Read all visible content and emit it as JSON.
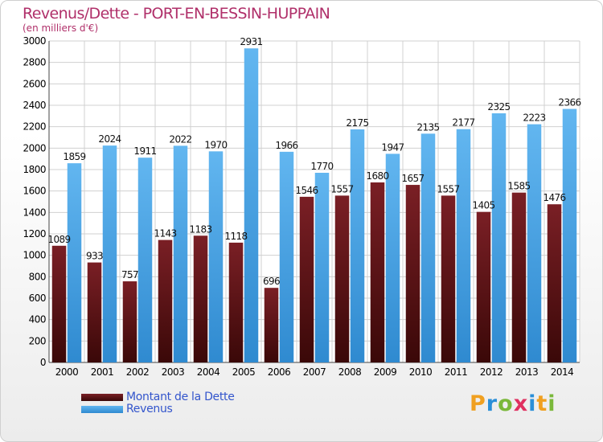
{
  "header": {
    "title": "Revenus/Dette - PORT-EN-BESSIN-HUPPAIN",
    "subtitle": "(en milliers d'€)"
  },
  "legend": {
    "dette_label": "Montant de la Dette",
    "revenus_label": "Revenus"
  },
  "logo": {
    "letters": [
      "P",
      "r",
      "o",
      "x",
      "i",
      "t",
      "i"
    ]
  },
  "colors": {
    "title": "#b0306a",
    "dette_top": "#7a1f25",
    "dette_bottom": "#3a0808",
    "revenus_top": "#62b6f0",
    "revenus_bottom": "#2f8ad0",
    "legend_text": "#3355cc"
  },
  "chart_data": {
    "type": "bar",
    "title": "Revenus/Dette - PORT-EN-BESSIN-HUPPAIN",
    "subtitle": "(en milliers d'€)",
    "xlabel": "",
    "ylabel": "",
    "categories": [
      "2000",
      "2001",
      "2002",
      "2003",
      "2004",
      "2005",
      "2006",
      "2007",
      "2008",
      "2009",
      "2010",
      "2011",
      "2012",
      "2013",
      "2014"
    ],
    "series": [
      {
        "name": "Montant de la Dette",
        "values": [
          1089,
          933,
          757,
          1143,
          1183,
          1118,
          696,
          1546,
          1557,
          1680,
          1657,
          1557,
          1405,
          1585,
          1476
        ]
      },
      {
        "name": "Revenus",
        "values": [
          1859,
          2024,
          1911,
          2022,
          1970,
          2931,
          1966,
          1770,
          2175,
          1947,
          2135,
          2177,
          2325,
          2223,
          2366
        ]
      }
    ],
    "ylim": [
      0,
      3000
    ],
    "yticks": [
      0,
      200,
      400,
      600,
      800,
      1000,
      1200,
      1400,
      1600,
      1800,
      2000,
      2200,
      2400,
      2600,
      2800,
      3000
    ],
    "grid": true,
    "legend_position": "bottom-left"
  }
}
